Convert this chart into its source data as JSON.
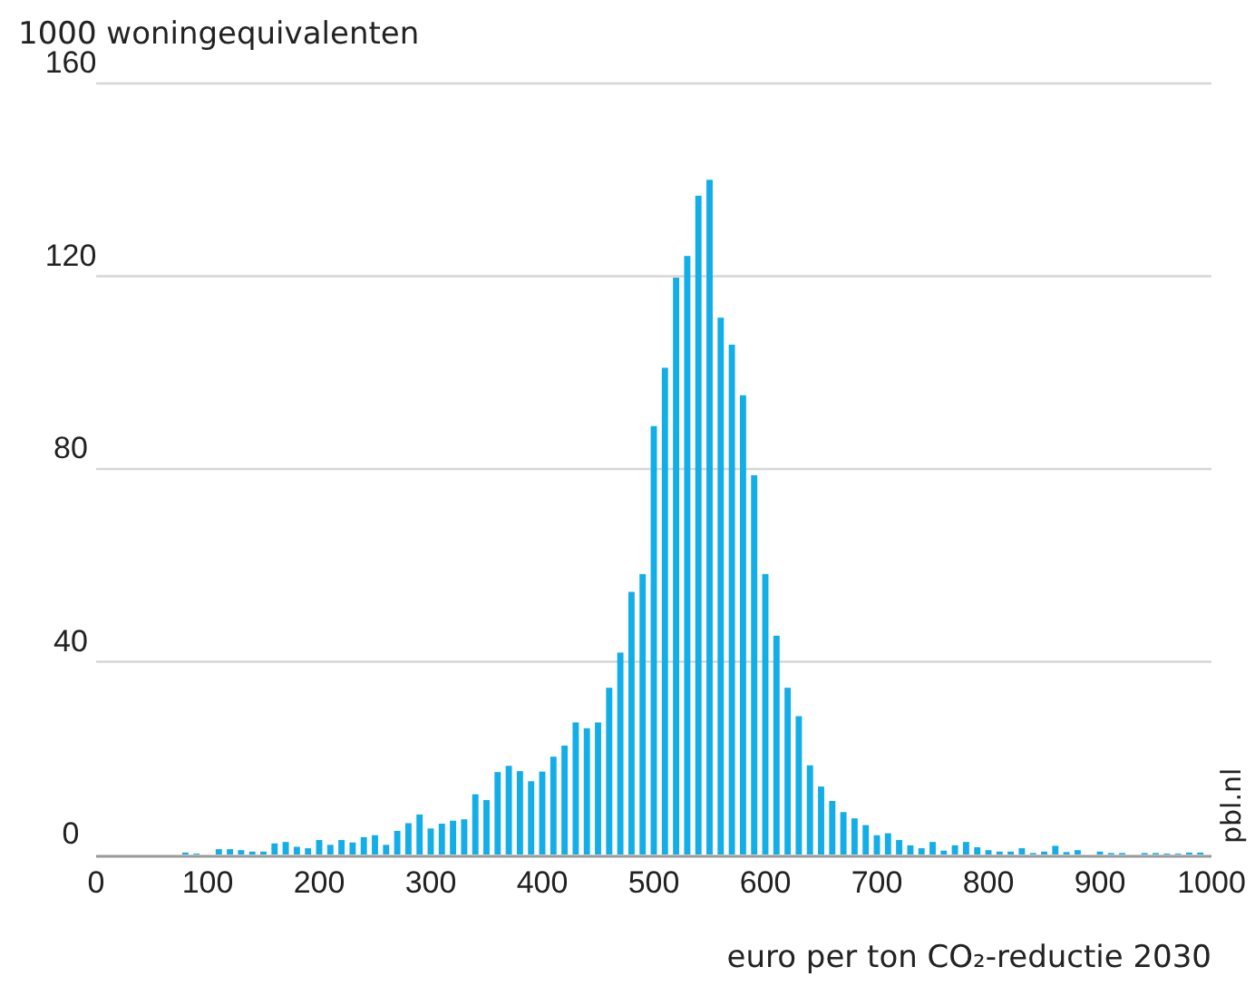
{
  "chart_data": {
    "type": "histogram",
    "ylabel": "1000  woningequivalenten",
    "xlabel": "euro per ton CO₂-reductie 2030",
    "annotations": [
      "pbl.nl"
    ],
    "bins": [
      75,
      85,
      95,
      105,
      115,
      125,
      135,
      145,
      155,
      165,
      175,
      185,
      195,
      205,
      215,
      225,
      235,
      245,
      255,
      265,
      275,
      285,
      295,
      305,
      315,
      325,
      335,
      345,
      355,
      365,
      375,
      385,
      395,
      405,
      415,
      425,
      435,
      445,
      455,
      465,
      475,
      485,
      495,
      505,
      515,
      525,
      535,
      545,
      555,
      565,
      575,
      585,
      595,
      605,
      615,
      625,
      635,
      645,
      655,
      665,
      675,
      685,
      695,
      705,
      715,
      725,
      735,
      745,
      755,
      765,
      775,
      785,
      795,
      805,
      815,
      825,
      835,
      845,
      855,
      865,
      875,
      885,
      895,
      905,
      915,
      925,
      935,
      945,
      955,
      965,
      975,
      985,
      995
    ],
    "values": [
      0.4,
      0.2,
      0,
      1.1,
      1.1,
      0.9,
      0.6,
      0.6,
      2.3,
      2.6,
      1.6,
      1.3,
      3.0,
      2.0,
      3.0,
      2.5,
      3.6,
      4.0,
      2.0,
      4.9,
      6.5,
      8.3,
      5.4,
      6.4,
      7.0,
      7.3,
      12.5,
      11.3,
      17.1,
      18.4,
      17.3,
      15.2,
      17.2,
      20.3,
      22.6,
      27.4,
      26.2,
      27.4,
      34.6,
      41.9,
      54.5,
      58.2,
      88.9,
      101,
      119.7,
      124.2,
      136.7,
      140,
      111.4,
      105.8,
      95.3,
      78.7,
      58.2,
      45.4,
      34.6,
      28.7,
      18.5,
      14.1,
      11.1,
      8.8,
      7.5,
      6.1,
      4.0,
      4.4,
      3.0,
      1.9,
      1.3,
      2.6,
      0.8,
      1.9,
      2.6,
      1.5,
      0.9,
      0.6,
      0.6,
      1.3,
      0.3,
      0.6,
      1.8,
      0.5,
      0.9,
      0,
      0.6,
      0.3,
      0.3,
      0,
      0.3,
      0.3,
      0.2,
      0.2,
      0.4,
      0.4
    ],
    "color": "#12aee8",
    "xlim": [
      0,
      1000
    ],
    "xticks": [
      0,
      100,
      200,
      300,
      400,
      500,
      600,
      700,
      800,
      900,
      1000
    ],
    "ylim": [
      0,
      160
    ],
    "yticks": [
      0,
      40,
      80,
      120,
      160
    ],
    "grid": "y"
  }
}
